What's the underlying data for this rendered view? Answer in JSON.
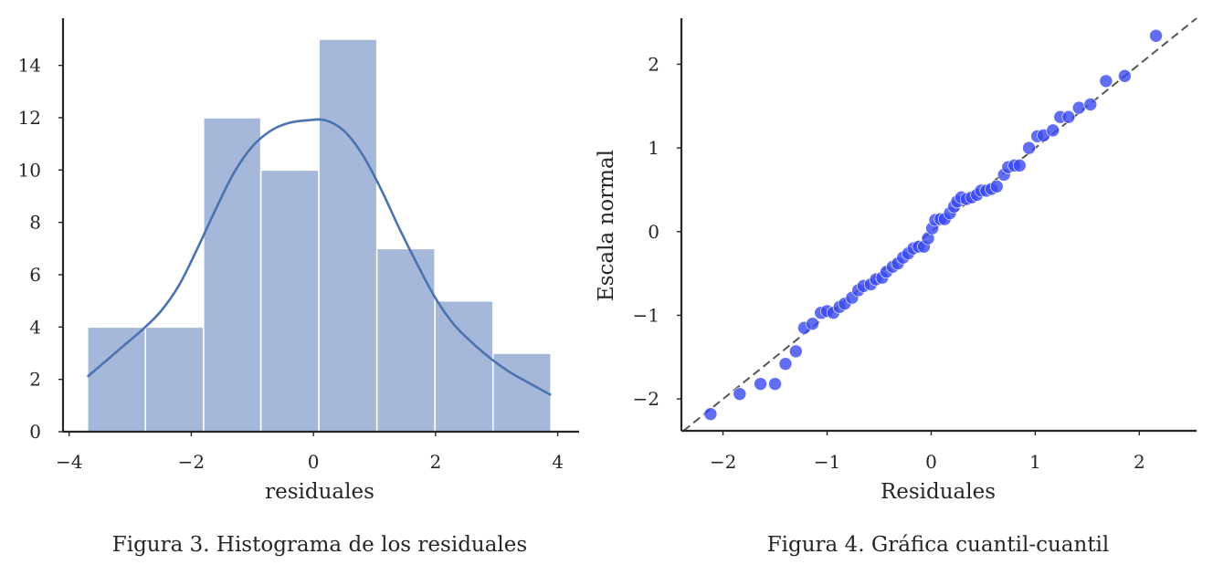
{
  "chart_data": [
    {
      "type": "bar",
      "subtype": "histogram-with-kde",
      "title": "",
      "caption": "Figura 3. Histograma de los residuales",
      "xlabel": "residuales",
      "ylabel": "",
      "xlim": [
        -4.1,
        4.35
      ],
      "ylim": [
        0,
        15.8
      ],
      "xticks": [
        -4,
        -2,
        0,
        2,
        4
      ],
      "yticks": [
        0,
        2,
        4,
        6,
        8,
        10,
        12,
        14
      ],
      "grid": false,
      "color": "#a5b8d9",
      "line_color": "#4c72b0",
      "bins": [
        {
          "x0": -3.7,
          "x1": -2.75,
          "count": 4
        },
        {
          "x0": -2.75,
          "x1": -1.8,
          "count": 4
        },
        {
          "x0": -1.8,
          "x1": -0.86,
          "count": 12
        },
        {
          "x0": -0.86,
          "x1": 0.09,
          "count": 10
        },
        {
          "x0": 0.09,
          "x1": 1.04,
          "count": 15
        },
        {
          "x0": 1.04,
          "x1": 1.99,
          "count": 7
        },
        {
          "x0": 1.99,
          "x1": 2.94,
          "count": 5
        },
        {
          "x0": 2.94,
          "x1": 3.89,
          "count": 3
        }
      ],
      "kde": {
        "x": [
          -3.7,
          -3.4,
          -3.1,
          -2.8,
          -2.5,
          -2.2,
          -1.9,
          -1.6,
          -1.3,
          -1.0,
          -0.7,
          -0.4,
          -0.1,
          0.2,
          0.5,
          0.8,
          1.1,
          1.4,
          1.7,
          2.0,
          2.3,
          2.6,
          2.9,
          3.2,
          3.5,
          3.89
        ],
        "y": [
          2.1,
          2.7,
          3.3,
          3.9,
          4.6,
          5.6,
          7.0,
          8.5,
          9.9,
          10.9,
          11.5,
          11.8,
          11.9,
          11.9,
          11.5,
          10.6,
          9.3,
          7.8,
          6.4,
          5.1,
          4.1,
          3.4,
          2.8,
          2.3,
          1.9,
          1.4
        ]
      }
    },
    {
      "type": "scatter",
      "subtype": "qq-plot",
      "title": "",
      "caption": "Figura 4. Gráfica cuantil-cuantil",
      "xlabel": "Residuales",
      "ylabel": "Escala normal",
      "xlim": [
        -2.4,
        2.55
      ],
      "ylim": [
        -2.38,
        2.55
      ],
      "xticks": [
        -2,
        -1,
        0,
        1,
        2
      ],
      "yticks": [
        -2,
        -1,
        0,
        1,
        2
      ],
      "grid": false,
      "color": "#3a49f0",
      "reference_line": {
        "slope": 1,
        "intercept": 0,
        "style": "dashed",
        "color": "#555555"
      },
      "points": [
        [
          -2.12,
          -2.18
        ],
        [
          -1.84,
          -1.94
        ],
        [
          -1.64,
          -1.82
        ],
        [
          -1.5,
          -1.82
        ],
        [
          -1.4,
          -1.58
        ],
        [
          -1.3,
          -1.43
        ],
        [
          -1.22,
          -1.15
        ],
        [
          -1.14,
          -1.1
        ],
        [
          -1.06,
          -0.97
        ],
        [
          -1.0,
          -0.95
        ],
        [
          -0.94,
          -0.97
        ],
        [
          -0.88,
          -0.9
        ],
        [
          -0.83,
          -0.86
        ],
        [
          -0.76,
          -0.79
        ],
        [
          -0.7,
          -0.7
        ],
        [
          -0.65,
          -0.65
        ],
        [
          -0.58,
          -0.63
        ],
        [
          -0.53,
          -0.57
        ],
        [
          -0.47,
          -0.55
        ],
        [
          -0.43,
          -0.48
        ],
        [
          -0.37,
          -0.42
        ],
        [
          -0.32,
          -0.38
        ],
        [
          -0.27,
          -0.31
        ],
        [
          -0.22,
          -0.26
        ],
        [
          -0.17,
          -0.2
        ],
        [
          -0.12,
          -0.18
        ],
        [
          -0.07,
          -0.18
        ],
        [
          -0.03,
          -0.08
        ],
        [
          0.01,
          0.04
        ],
        [
          0.04,
          0.14
        ],
        [
          0.09,
          0.15
        ],
        [
          0.13,
          0.15
        ],
        [
          0.18,
          0.22
        ],
        [
          0.22,
          0.3
        ],
        [
          0.25,
          0.36
        ],
        [
          0.29,
          0.41
        ],
        [
          0.34,
          0.39
        ],
        [
          0.39,
          0.41
        ],
        [
          0.44,
          0.44
        ],
        [
          0.48,
          0.49
        ],
        [
          0.53,
          0.49
        ],
        [
          0.58,
          0.51
        ],
        [
          0.63,
          0.54
        ],
        [
          0.7,
          0.68
        ],
        [
          0.74,
          0.77
        ],
        [
          0.8,
          0.79
        ],
        [
          0.85,
          0.79
        ],
        [
          0.94,
          1.0
        ],
        [
          1.02,
          1.14
        ],
        [
          1.08,
          1.15
        ],
        [
          1.17,
          1.21
        ],
        [
          1.24,
          1.37
        ],
        [
          1.32,
          1.37
        ],
        [
          1.42,
          1.48
        ],
        [
          1.53,
          1.52
        ],
        [
          1.68,
          1.8
        ],
        [
          1.86,
          1.86
        ],
        [
          2.16,
          2.34
        ]
      ]
    }
  ]
}
